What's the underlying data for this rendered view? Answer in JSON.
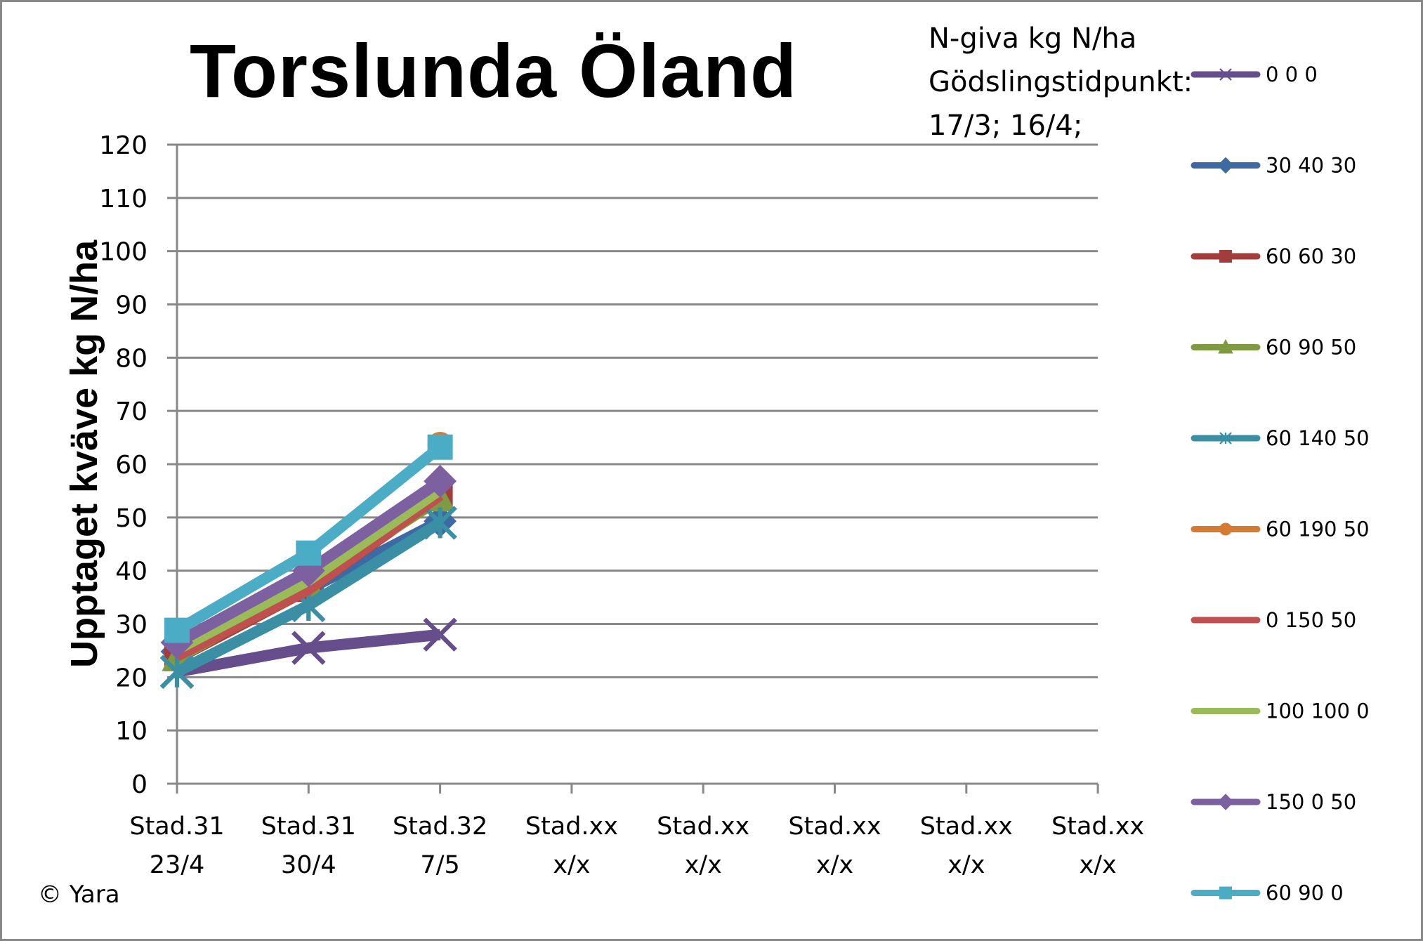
{
  "chart_data": {
    "type": "line",
    "title": "Torslunda Öland",
    "subtitle_lines": [
      "N-giva kg N/ha",
      "Gödslingstidpunkt:",
      "17/3; 16/4;"
    ],
    "xlabel": "",
    "ylabel": "Upptaget kväve kg N/ha",
    "ylim": [
      0,
      120
    ],
    "yticks": [
      0,
      10,
      20,
      30,
      40,
      50,
      60,
      70,
      80,
      90,
      100,
      110,
      120
    ],
    "grid": true,
    "legend_position": "right",
    "categories": [
      [
        "Stad.31",
        "23/4"
      ],
      [
        "Stad.31",
        "30/4"
      ],
      [
        "Stad.32",
        "7/5"
      ],
      [
        "Stad.xx",
        "x/x"
      ],
      [
        "Stad.xx",
        "x/x"
      ],
      [
        "Stad.xx",
        "x/x"
      ],
      [
        "Stad.xx",
        "x/x"
      ],
      [
        "Stad.xx",
        "x/x"
      ]
    ],
    "series": [
      {
        "name": "0 0 0",
        "color": "#664d8c",
        "marker": "x",
        "values": [
          21,
          25.5,
          28,
          null,
          null,
          null,
          null,
          null
        ]
      },
      {
        "name": "30 40 30",
        "color": "#3d6aa2",
        "marker": "diamond",
        "values": [
          24.8,
          36.5,
          49.3,
          null,
          null,
          null,
          null,
          null
        ]
      },
      {
        "name": "60 60 30",
        "color": "#a33d3b",
        "marker": "square",
        "values": [
          23.5,
          36.5,
          54,
          null,
          null,
          null,
          null,
          null
        ]
      },
      {
        "name": "60 90 50",
        "color": "#7f9b42",
        "marker": "triangle",
        "values": [
          23.5,
          37.5,
          53.5,
          null,
          null,
          null,
          null,
          null
        ]
      },
      {
        "name": "60 140 50",
        "color": "#3a8fa5",
        "marker": "asterisk",
        "values": [
          21,
          33.5,
          49,
          null,
          null,
          null,
          null,
          null
        ]
      },
      {
        "name": "60 190 50",
        "color": "#d47a33",
        "marker": "circle",
        "values": [
          28,
          42.5,
          63.7,
          null,
          null,
          null,
          null,
          null
        ]
      },
      {
        "name": "0 150 50",
        "color": "#c0504d",
        "marker": "none",
        "values": [
          24,
          36.5,
          54.2,
          null,
          null,
          null,
          null,
          null
        ]
      },
      {
        "name": "100 100 0",
        "color": "#9bbb59",
        "marker": "none",
        "values": [
          25.2,
          38.2,
          55.2,
          null,
          null,
          null,
          null,
          null
        ]
      },
      {
        "name": "150 0 50",
        "color": "#7d60a0",
        "marker": "diamond",
        "values": [
          26.5,
          40,
          56.8,
          null,
          null,
          null,
          null,
          null
        ]
      },
      {
        "name": "60 90 0",
        "color": "#4bacc6",
        "marker": "square",
        "values": [
          28.8,
          43.3,
          63.2,
          null,
          null,
          null,
          null,
          null
        ]
      }
    ]
  },
  "chart": {
    "title": "Torslunda Öland",
    "note": "N-giva kg N/ha\nGödslingstidpunkt:\n17/3; 16/4;",
    "ylabel": "Upptaget kväve kg N/ha",
    "copyright": "© Yara"
  }
}
